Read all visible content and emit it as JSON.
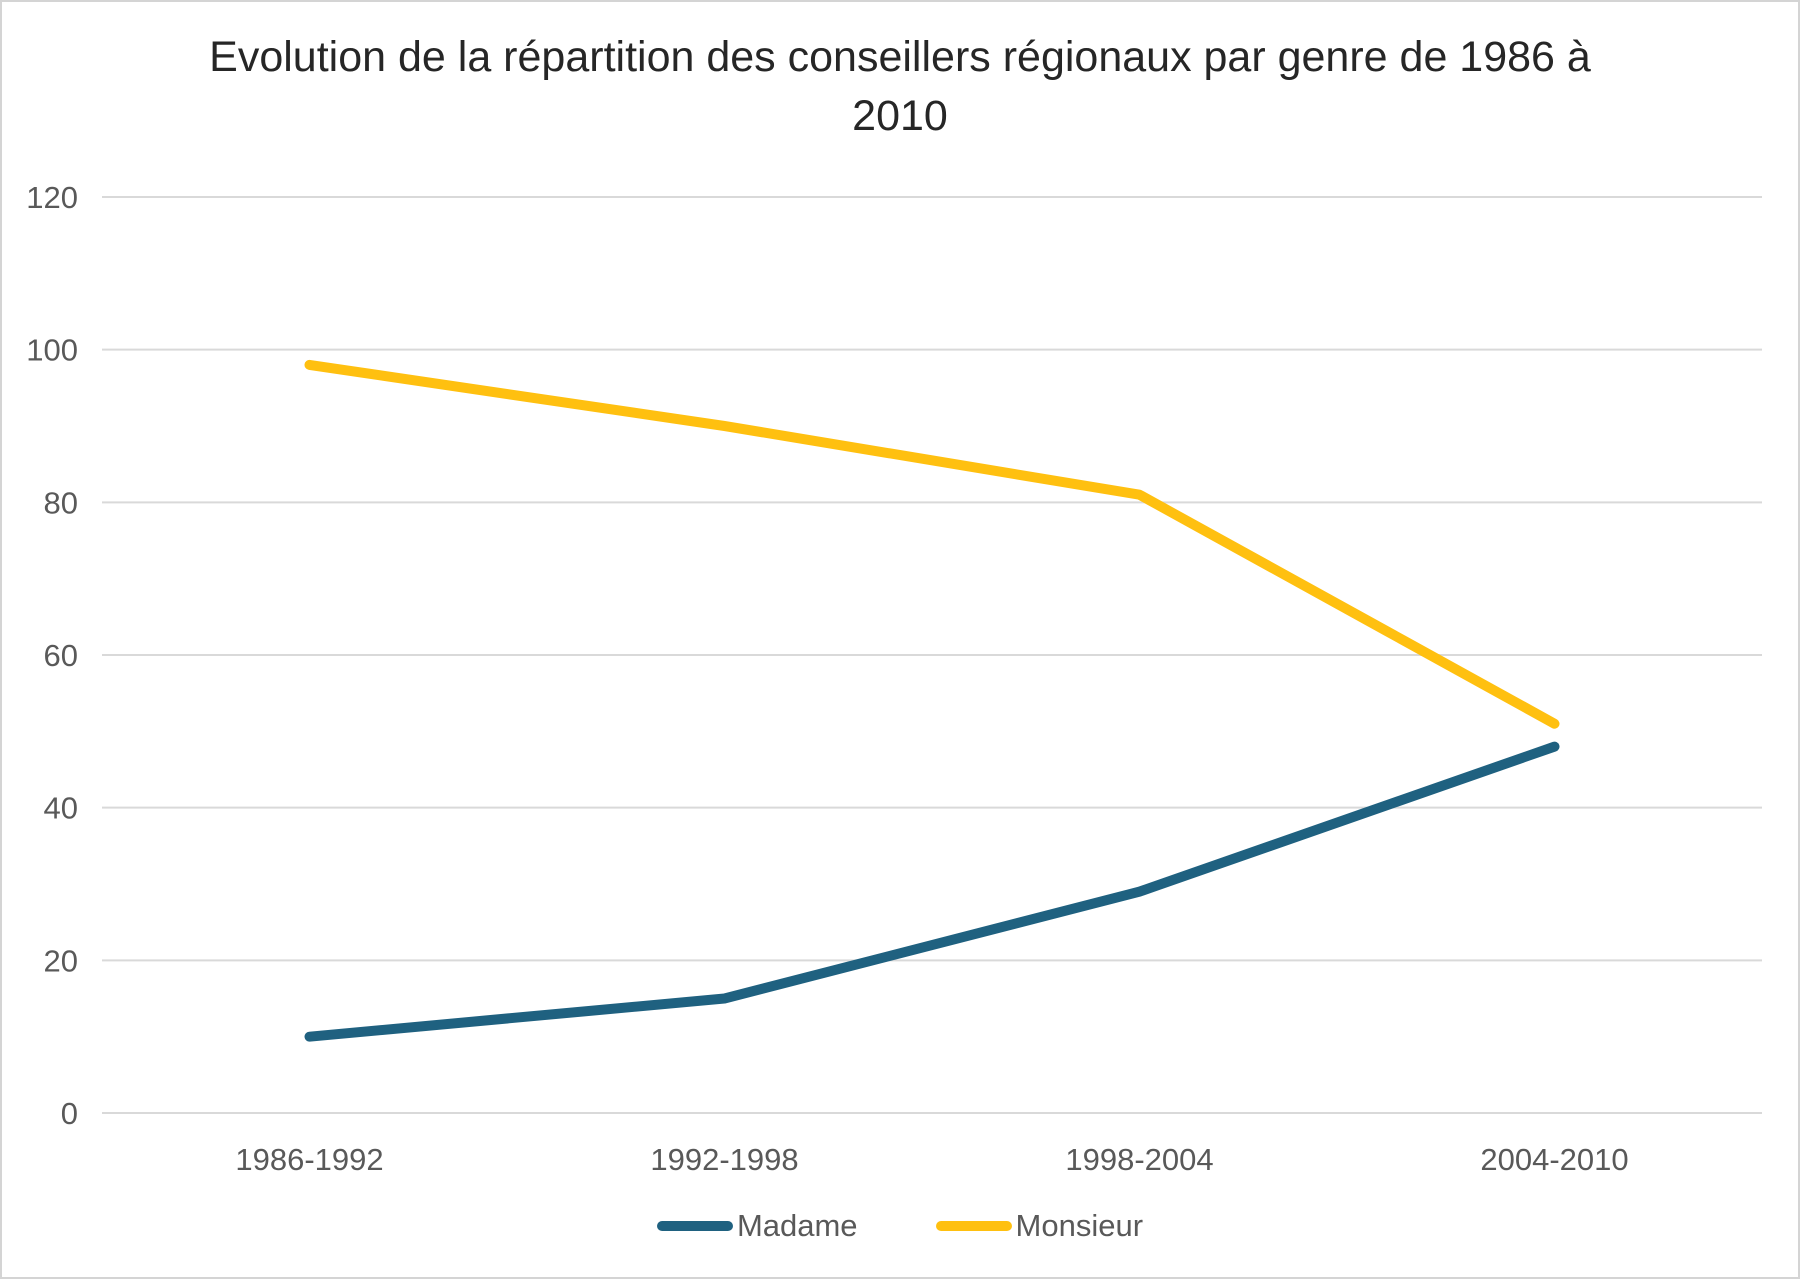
{
  "chart_data": {
    "type": "line",
    "title": "Evolution de la répartition des conseillers régionaux par genre de 1986 à 2010",
    "categories": [
      "1986-1992",
      "1992-1998",
      "1998-2004",
      "2004-2010"
    ],
    "series": [
      {
        "name": "Madame",
        "color": "#1F6180",
        "values": [
          10,
          15,
          29,
          48
        ]
      },
      {
        "name": "Monsieur",
        "color": "#FFC010",
        "values": [
          98,
          90,
          81,
          51
        ]
      }
    ],
    "xlabel": "",
    "ylabel": "",
    "ylim": [
      0,
      120
    ],
    "yticks": [
      0,
      20,
      40,
      60,
      80,
      100,
      120
    ],
    "grid": true,
    "legend_position": "bottom",
    "colors": {
      "title": "#262626",
      "axis_labels": "#595959",
      "gridlines": "#d9d9d9",
      "background": "#ffffff",
      "frame_border": "#d4d4d4"
    },
    "line_width": 10
  }
}
